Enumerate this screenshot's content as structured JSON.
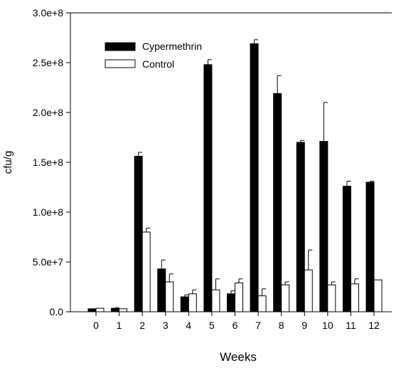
{
  "chart_data": {
    "type": "bar",
    "xlabel": "Weeks",
    "ylabel": "cfu/g",
    "ylim": [
      0,
      300000000
    ],
    "yticks": [
      0,
      50000000,
      100000000,
      150000000,
      200000000,
      250000000,
      300000000
    ],
    "ytick_labels": [
      "0.0",
      "5.0e+7",
      "1.0e+8",
      "1.5e+8",
      "2.0e+8",
      "2.5e+8",
      "3.0e+8"
    ],
    "categories": [
      "0",
      "1",
      "2",
      "3",
      "4",
      "5",
      "6",
      "7",
      "8",
      "9",
      "10",
      "11",
      "12"
    ],
    "legend_position": "top-left",
    "grid": false,
    "series": [
      {
        "name": "Cypermethrin",
        "color": "#000000",
        "fill": "solid",
        "values": [
          3000000,
          3500000,
          156000000,
          43000000,
          15000000,
          248000000,
          18000000,
          269000000,
          219000000,
          170000000,
          171000000,
          126000000,
          130000000
        ],
        "errors": [
          0,
          500000,
          4000000,
          9000000,
          2000000,
          5000000,
          3000000,
          4000000,
          18000000,
          2000000,
          39000000,
          5000000,
          1000000
        ]
      },
      {
        "name": "Control",
        "color": "#ffffff",
        "fill": "open",
        "values": [
          3500000,
          3000000,
          80000000,
          30000000,
          18000000,
          22000000,
          29000000,
          16000000,
          27000000,
          42000000,
          27000000,
          28000000,
          32000000
        ],
        "errors": [
          0,
          0,
          4000000,
          8000000,
          4000000,
          11000000,
          4000000,
          7000000,
          3000000,
          20000000,
          3000000,
          5000000,
          0
        ]
      }
    ]
  }
}
